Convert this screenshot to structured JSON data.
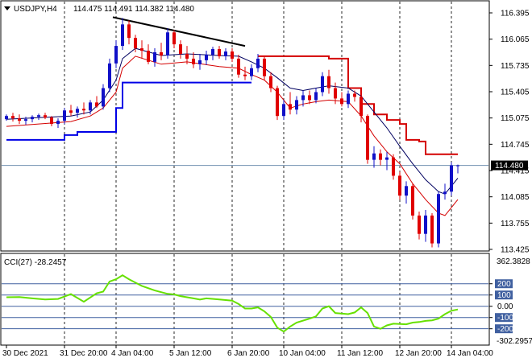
{
  "header": {
    "symbol": "USDJPY,H4",
    "ohlc": "114.475 114.491 114.382 114.480"
  },
  "cci_panel": {
    "label": "CCI(27) -28.2457",
    "axis_top": "362.3828",
    "axis_bottom": "-302.2957"
  },
  "colors": {
    "bull": "#1010c8",
    "bear": "#e00000",
    "upper_band": "#d40000",
    "lower_band": "#0000e6",
    "ma_fast": "#d40000",
    "ma_slow": "#000060",
    "trendline": "#000000",
    "cci": "#66e000",
    "cci_levels": "#4060a0",
    "price_marker_bg": "#000000"
  },
  "chart_data": [
    {
      "type": "candlestick",
      "y_ticks": [
        116.395,
        116.065,
        115.735,
        115.405,
        115.075,
        114.745,
        114.415,
        114.085,
        113.755,
        113.425
      ],
      "ylim": [
        113.425,
        116.395
      ],
      "current_price": 114.48,
      "current_price_label": "114.480",
      "x_tick_labels": [
        "30 Dec 2021",
        "31 Dec 20:00",
        "4 Jan 04:00",
        "5 Jan 12:00",
        "6 Jan 20:00",
        "10 Jan 04:00",
        "11 Jan 12:00",
        "12 Jan 20:00",
        "14 Jan 04:00"
      ],
      "candles": [
        [
          115.06,
          115.12,
          115.04,
          115.1
        ],
        [
          115.1,
          115.14,
          115.03,
          115.07
        ],
        [
          115.07,
          115.12,
          115.0,
          115.04
        ],
        [
          115.04,
          115.09,
          114.99,
          115.06
        ],
        [
          115.06,
          115.11,
          115.02,
          115.09
        ],
        [
          115.09,
          115.13,
          115.05,
          115.11
        ],
        [
          115.11,
          115.14,
          115.06,
          115.08
        ],
        [
          115.08,
          115.1,
          114.97,
          115.0
        ],
        [
          115.0,
          115.07,
          114.95,
          115.04
        ],
        [
          115.04,
          115.2,
          115.0,
          115.17
        ],
        [
          115.17,
          115.24,
          115.1,
          115.14
        ],
        [
          115.14,
          115.22,
          115.08,
          115.19
        ],
        [
          115.19,
          115.27,
          115.12,
          115.17
        ],
        [
          115.17,
          115.3,
          115.12,
          115.27
        ],
        [
          115.27,
          115.35,
          115.2,
          115.22
        ],
        [
          115.22,
          115.5,
          115.18,
          115.45
        ],
        [
          115.45,
          115.82,
          115.4,
          115.76
        ],
        [
          115.76,
          116.05,
          115.7,
          115.98
        ],
        [
          115.98,
          116.33,
          115.93,
          116.25
        ],
        [
          116.25,
          116.3,
          116.0,
          116.08
        ],
        [
          116.08,
          116.12,
          115.9,
          115.95
        ],
        [
          115.95,
          116.05,
          115.82,
          115.92
        ],
        [
          115.92,
          116.0,
          115.75,
          115.78
        ],
        [
          115.78,
          115.95,
          115.72,
          115.9
        ],
        [
          115.9,
          116.02,
          115.8,
          115.86
        ],
        [
          115.86,
          116.2,
          115.82,
          116.15
        ],
        [
          116.15,
          116.18,
          115.95,
          116.0
        ],
        [
          116.0,
          116.05,
          115.82,
          115.88
        ],
        [
          115.88,
          115.98,
          115.75,
          115.82
        ],
        [
          115.82,
          115.9,
          115.7,
          115.75
        ],
        [
          115.75,
          115.88,
          115.68,
          115.8
        ],
        [
          115.8,
          115.92,
          115.74,
          115.87
        ],
        [
          115.87,
          115.97,
          115.8,
          115.94
        ],
        [
          115.94,
          115.98,
          115.82,
          115.85
        ],
        [
          115.85,
          115.95,
          115.8,
          115.91
        ],
        [
          115.91,
          115.95,
          115.78,
          115.82
        ],
        [
          115.82,
          115.87,
          115.58,
          115.62
        ],
        [
          115.62,
          115.72,
          115.55,
          115.6
        ],
        [
          115.6,
          115.75,
          115.55,
          115.7
        ],
        [
          115.7,
          115.88,
          115.65,
          115.82
        ],
        [
          115.82,
          115.85,
          115.55,
          115.6
        ],
        [
          115.6,
          115.65,
          115.4,
          115.45
        ],
        [
          115.45,
          115.48,
          115.05,
          115.1
        ],
        [
          115.1,
          115.3,
          115.05,
          115.25
        ],
        [
          115.25,
          115.4,
          115.12,
          115.18
        ],
        [
          115.18,
          115.35,
          115.12,
          115.3
        ],
        [
          115.3,
          115.42,
          115.22,
          115.36
        ],
        [
          115.36,
          115.42,
          115.25,
          115.3
        ],
        [
          115.3,
          115.45,
          115.26,
          115.4
        ],
        [
          115.4,
          115.65,
          115.35,
          115.6
        ],
        [
          115.6,
          115.68,
          115.38,
          115.45
        ],
        [
          115.45,
          115.52,
          115.25,
          115.32
        ],
        [
          115.32,
          115.4,
          115.22,
          115.25
        ],
        [
          115.25,
          115.42,
          115.2,
          115.38
        ],
        [
          115.38,
          115.42,
          115.28,
          115.34
        ],
        [
          115.34,
          115.4,
          115.02,
          115.1
        ],
        [
          115.1,
          115.12,
          114.5,
          114.55
        ],
        [
          114.55,
          114.72,
          114.45,
          114.63
        ],
        [
          114.63,
          114.68,
          114.48,
          114.55
        ],
        [
          114.55,
          114.65,
          114.42,
          114.58
        ],
        [
          114.58,
          114.62,
          114.3,
          114.35
        ],
        [
          114.35,
          114.4,
          114.05,
          114.1
        ],
        [
          114.1,
          114.28,
          114.0,
          114.22
        ],
        [
          114.22,
          114.25,
          113.8,
          113.85
        ],
        [
          113.85,
          113.9,
          113.55,
          113.62
        ],
        [
          113.62,
          113.92,
          113.52,
          113.85
        ],
        [
          113.85,
          113.88,
          113.45,
          113.5
        ],
        [
          113.5,
          114.15,
          113.45,
          114.12
        ],
        [
          114.12,
          114.25,
          114.05,
          114.15
        ],
        [
          114.15,
          114.52,
          114.1,
          114.48
        ],
        [
          114.48,
          114.49,
          114.38,
          114.48
        ]
      ],
      "upper_band": [
        {
          "i": 39,
          "v": 115.85
        },
        {
          "i": 50,
          "v": 115.85
        },
        {
          "i": 50,
          "v": 115.82
        },
        {
          "i": 51,
          "v": 115.82
        },
        {
          "i": 53,
          "v": 115.45
        },
        {
          "i": 55,
          "v": 115.25
        },
        {
          "i": 57,
          "v": 115.12
        },
        {
          "i": 59,
          "v": 115.05
        },
        {
          "i": 61,
          "v": 115.0
        },
        {
          "i": 62,
          "v": 114.8
        },
        {
          "i": 64,
          "v": 114.78
        },
        {
          "i": 65,
          "v": 114.62
        },
        {
          "i": 70,
          "v": 114.62
        }
      ],
      "lower_band": [
        {
          "i": 0,
          "v": 114.8
        },
        {
          "i": 8,
          "v": 114.8
        },
        {
          "i": 9,
          "v": 114.86
        },
        {
          "i": 11,
          "v": 114.9
        },
        {
          "i": 14,
          "v": 114.9
        },
        {
          "i": 17,
          "v": 115.2
        },
        {
          "i": 18,
          "v": 115.52
        },
        {
          "i": 38,
          "v": 115.52
        }
      ],
      "trendline": [
        {
          "i": 16.5,
          "v": 116.34
        },
        {
          "i": 37,
          "v": 115.98
        }
      ],
      "ma_fast": [
        [
          0,
          114.97
        ],
        [
          5,
          115.0
        ],
        [
          10,
          115.03
        ],
        [
          13,
          115.1
        ],
        [
          15,
          115.2
        ],
        [
          17,
          115.4
        ],
        [
          18,
          115.7
        ],
        [
          20,
          115.85
        ],
        [
          24,
          115.75
        ],
        [
          28,
          115.78
        ],
        [
          33,
          115.72
        ],
        [
          36,
          115.7
        ],
        [
          38,
          115.62
        ],
        [
          40,
          115.55
        ],
        [
          42,
          115.4
        ],
        [
          44,
          115.2
        ],
        [
          46,
          115.25
        ],
        [
          48,
          115.28
        ],
        [
          50,
          115.3
        ],
        [
          53,
          115.28
        ],
        [
          55,
          115.1
        ],
        [
          57,
          114.85
        ],
        [
          59,
          114.65
        ],
        [
          61,
          114.5
        ],
        [
          63,
          114.25
        ],
        [
          65,
          114.05
        ],
        [
          67,
          113.88
        ],
        [
          68,
          113.85
        ],
        [
          70,
          114.05
        ]
      ],
      "ma_slow": [
        [
          0,
          115.06
        ],
        [
          5,
          115.08
        ],
        [
          10,
          115.1
        ],
        [
          13,
          115.15
        ],
        [
          15,
          115.3
        ],
        [
          17,
          115.55
        ],
        [
          18,
          115.82
        ],
        [
          20,
          115.95
        ],
        [
          24,
          115.86
        ],
        [
          28,
          115.88
        ],
        [
          33,
          115.86
        ],
        [
          36,
          115.85
        ],
        [
          38,
          115.78
        ],
        [
          40,
          115.7
        ],
        [
          42,
          115.58
        ],
        [
          44,
          115.45
        ],
        [
          46,
          115.42
        ],
        [
          48,
          115.45
        ],
        [
          50,
          115.48
        ],
        [
          53,
          115.45
        ],
        [
          55,
          115.35
        ],
        [
          57,
          115.15
        ],
        [
          59,
          114.95
        ],
        [
          61,
          114.72
        ],
        [
          63,
          114.5
        ],
        [
          65,
          114.3
        ],
        [
          67,
          114.15
        ],
        [
          68,
          114.12
        ],
        [
          70,
          114.32
        ]
      ]
    },
    {
      "type": "line",
      "name": "CCI(27)",
      "ylim": [
        -302.2957,
        362.3828
      ],
      "levels": [
        200,
        100,
        0,
        -100,
        -200
      ],
      "level_labels": [
        "200",
        "100",
        "0.00",
        "-100",
        "-200"
      ],
      "values": [
        [
          0,
          80
        ],
        [
          2,
          82
        ],
        [
          4,
          70
        ],
        [
          6,
          60
        ],
        [
          8,
          65
        ],
        [
          10,
          108
        ],
        [
          12,
          40
        ],
        [
          14,
          115
        ],
        [
          15,
          130
        ],
        [
          16,
          220
        ],
        [
          17,
          240
        ],
        [
          18,
          275
        ],
        [
          19,
          240
        ],
        [
          21,
          180
        ],
        [
          23,
          140
        ],
        [
          25,
          110
        ],
        [
          26,
          105
        ],
        [
          27,
          90
        ],
        [
          29,
          70
        ],
        [
          30,
          60
        ],
        [
          31,
          70
        ],
        [
          33,
          60
        ],
        [
          35,
          50
        ],
        [
          36,
          20
        ],
        [
          37,
          -20
        ],
        [
          38,
          -20
        ],
        [
          39,
          -10
        ],
        [
          40,
          -45
        ],
        [
          41,
          -95
        ],
        [
          42,
          -190
        ],
        [
          43,
          -225
        ],
        [
          44,
          -180
        ],
        [
          45,
          -145
        ],
        [
          47,
          -110
        ],
        [
          48,
          -90
        ],
        [
          49,
          -20
        ],
        [
          50,
          0
        ],
        [
          51,
          -60
        ],
        [
          53,
          -70
        ],
        [
          54,
          -55
        ],
        [
          55,
          -10
        ],
        [
          56,
          -60
        ],
        [
          57,
          -180
        ],
        [
          58,
          -200
        ],
        [
          59,
          -170
        ],
        [
          60,
          -155
        ],
        [
          62,
          -160
        ],
        [
          63,
          -145
        ],
        [
          64,
          -140
        ],
        [
          65,
          -130
        ],
        [
          66,
          -125
        ],
        [
          67,
          -110
        ],
        [
          68,
          -70
        ],
        [
          69,
          -40
        ],
        [
          70,
          -28.2457
        ]
      ]
    }
  ]
}
